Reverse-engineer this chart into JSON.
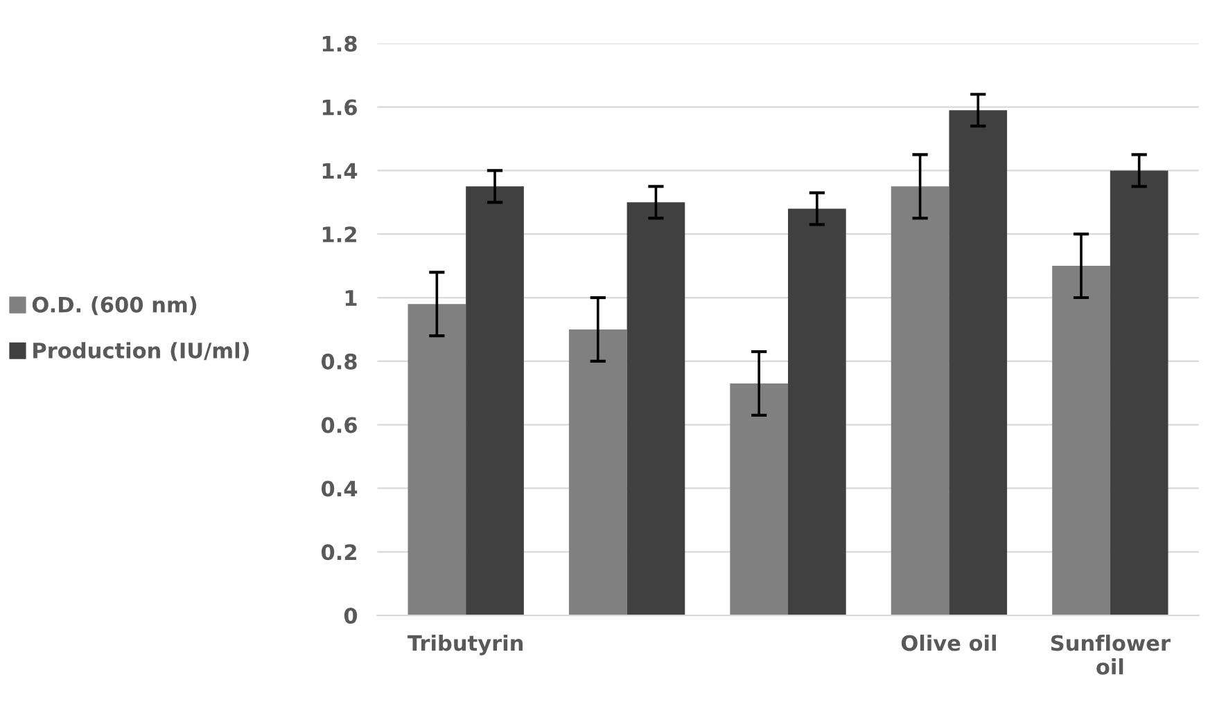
{
  "chart_data": {
    "type": "bar",
    "categories": [
      "Tributyrin",
      null,
      null,
      "Olive oil",
      "Sunflower oil"
    ],
    "series": [
      {
        "name": "O.D. (600 nm)",
        "color": "#808080",
        "values": [
          0.98,
          0.9,
          0.73,
          1.35,
          1.1
        ],
        "errors": [
          0.1,
          0.1,
          0.1,
          0.1,
          0.1
        ]
      },
      {
        "name": "Production (IU/ml)",
        "color": "#404040",
        "values": [
          1.35,
          1.3,
          1.28,
          1.59,
          1.4
        ],
        "errors": [
          0.05,
          0.05,
          0.05,
          0.05,
          0.05
        ]
      }
    ],
    "ylim": [
      0,
      1.8
    ],
    "yticks": [
      0,
      {
        "value": 0.2,
        "label": "0.2"
      },
      {
        "value": 0.4,
        "label": "0.4"
      },
      {
        "value": 0.6,
        "label": "0.6"
      },
      {
        "value": 0.8,
        "label": "0.8"
      },
      1,
      {
        "value": 1.2,
        "label": "1.2"
      },
      {
        "value": 1.4,
        "label": "1.4"
      },
      {
        "value": 1.6,
        "label": "1.6"
      },
      {
        "value": 1.8,
        "label": "1.8"
      }
    ],
    "grid": "y",
    "legend": "left"
  }
}
